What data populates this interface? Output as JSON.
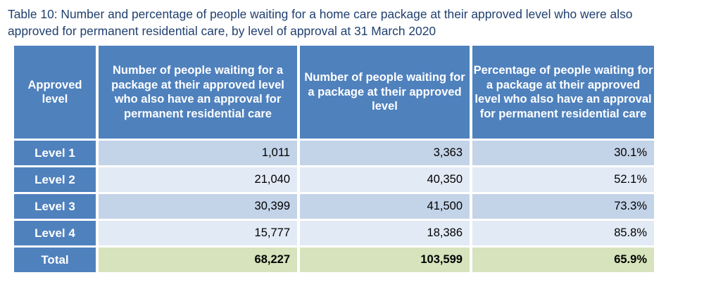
{
  "caption": {
    "line1": "Table 10: Number and percentage of people waiting for a home care package at their approved level who were also",
    "line2": "approved for permanent residential care, by level of approval at 31 March 2020"
  },
  "table": {
    "headers": [
      "Approved level",
      "Number of people waiting for a package at their approved level who also have an approval for permanent residential care",
      "Number of people waiting for a package at their approved level",
      "Percentage of people waiting for a package at their approved level who also have an approval for permanent residential care"
    ],
    "rows": [
      {
        "level": "Level 1",
        "with_residential": "1,011",
        "waiting": "3,363",
        "percentage": "30.1%"
      },
      {
        "level": "Level 2",
        "with_residential": "21,040",
        "waiting": "40,350",
        "percentage": "52.1%"
      },
      {
        "level": "Level 3",
        "with_residential": "30,399",
        "waiting": "41,500",
        "percentage": "73.3%"
      },
      {
        "level": "Level 4",
        "with_residential": "15,777",
        "waiting": "18,386",
        "percentage": "85.8%"
      }
    ],
    "total": {
      "level": "Total",
      "with_residential": "68,227",
      "waiting": "103,599",
      "percentage": "65.9%"
    }
  },
  "colors": {
    "header_bg": "#4f81bd",
    "row_odd_bg": "#c3d3e8",
    "row_even_bg": "#e2eaf5",
    "total_bg": "#d6e3bc",
    "caption_text": "#1f3f6f"
  }
}
